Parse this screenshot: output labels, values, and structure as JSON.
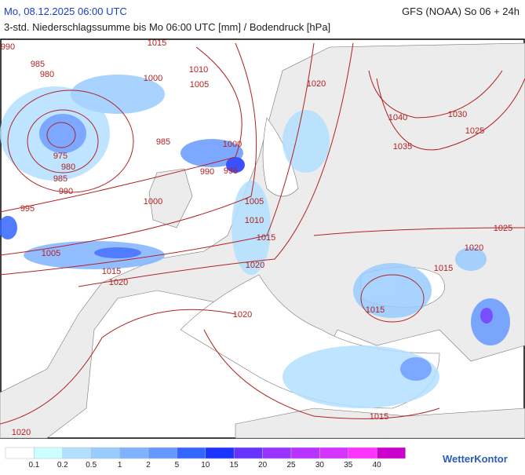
{
  "header": {
    "left": "Mo, 08.12.2025 06:00 UTC",
    "right": "GFS (NOAA) So 06 + 24h",
    "subtitle": "3-std. Niederschlagssumme bis Mo 06:00 UTC [mm] / Bodendruck [hPa]"
  },
  "map": {
    "isobar_labels": [
      "1015",
      "990",
      "985",
      "980",
      "1010",
      "1000",
      "1005",
      "1020",
      "1040",
      "1030",
      "1025",
      "975",
      "985",
      "1000",
      "980",
      "990",
      "995",
      "985",
      "990",
      "1035",
      "1000",
      "995",
      "1005",
      "1010",
      "1015",
      "1025",
      "1005",
      "1020",
      "1020",
      "1015",
      "1015",
      "1020",
      "1015",
      "1020",
      "1015",
      "1020"
    ]
  },
  "legend": {
    "labels": [
      "0.1",
      "0.2",
      "0.5",
      "1",
      "2",
      "5",
      "10",
      "15",
      "20",
      "25",
      "30",
      "35",
      "40"
    ],
    "colors": [
      "#ffffff",
      "#ccffff",
      "#b3e0ff",
      "#99ccff",
      "#80b3ff",
      "#6699ff",
      "#3366ff",
      "#1a33ff",
      "#6633ff",
      "#9933ff",
      "#b833ff",
      "#d633ff",
      "#ff33ff",
      "#cc00cc"
    ]
  },
  "logo": "WetterKontor"
}
